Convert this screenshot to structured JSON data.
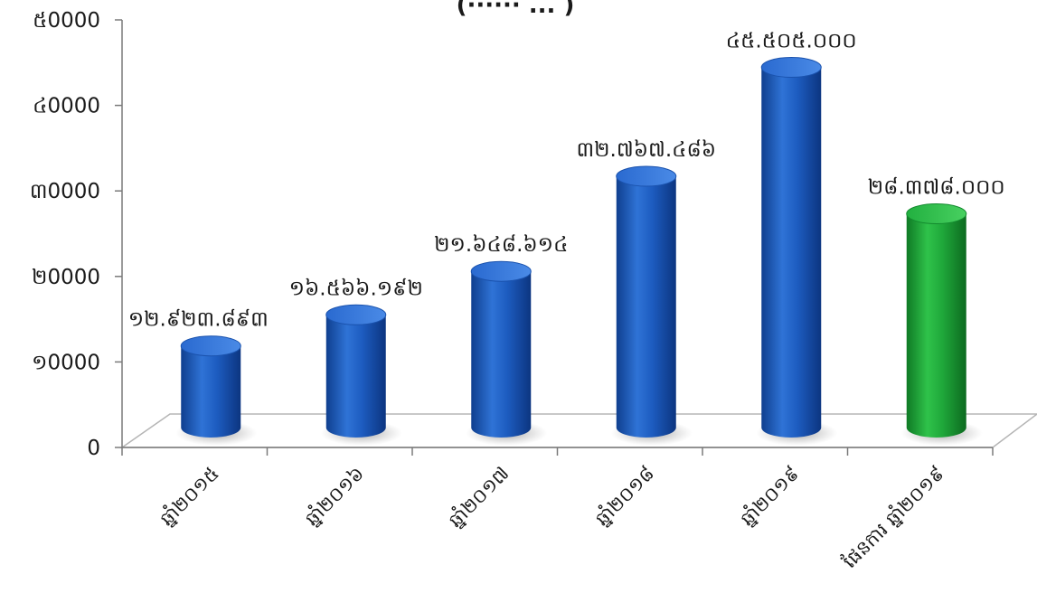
{
  "chart_data": {
    "type": "bar",
    "title": "(······ ... )",
    "categories": [
      "ឆ្នាំ២០១៥",
      "ឆ្នាំ២០១៦",
      "ឆ្នាំ២០១៧",
      "ឆ្នាំ២០១៨",
      "ឆ្នាំ២០១៩",
      "ផែនការ ឆ្នាំ២០១៩"
    ],
    "values": [
      12923893,
      16566192,
      21648614,
      32767486,
      45505000,
      28378000
    ],
    "value_labels": [
      "១២.៩២៣.៨៩៣",
      "១៦.៥៦៦.១៩២",
      "២១.៦៤៨.៦១៤",
      "៣២.៧៦៧.៤៨៦",
      "៤៥.៥០៥.០០០",
      "២៨.៣៧៨.០០០"
    ],
    "bar_colors": [
      "#1f5fbf",
      "#1f5fbf",
      "#1f5fbf",
      "#1f5fbf",
      "#1f5fbf",
      "#1fa83a"
    ],
    "yticks": [
      0,
      10000,
      20000,
      30000,
      40000,
      50000
    ],
    "ytick_labels": [
      "0",
      "១0000",
      "២0000",
      "៣0000",
      "៤0000",
      "៥0000"
    ],
    "ylim": [
      0,
      50000
    ],
    "value_scale": 1000,
    "grid": false,
    "legend": "none"
  }
}
